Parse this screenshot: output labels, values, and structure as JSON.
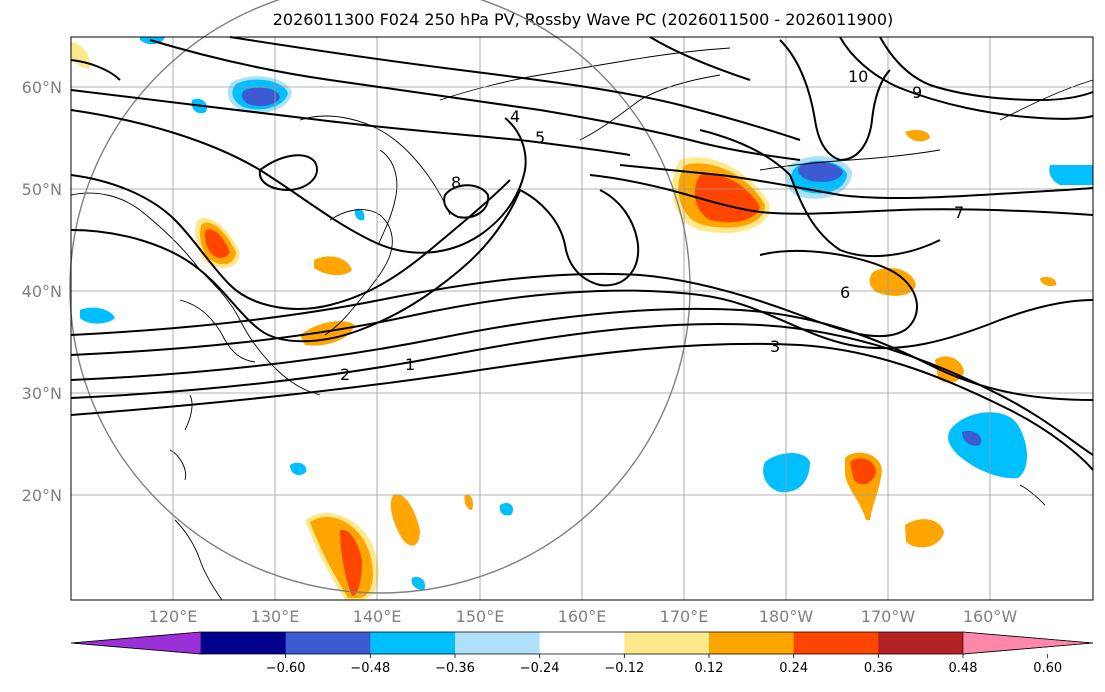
{
  "title": "2026011300 F024 250 hPa PV, Rossby Wave PC (2026011500 - 2026011900)",
  "lat_labels": [
    "60°N",
    "50°N",
    "40°N",
    "30°N",
    "20°N"
  ],
  "lon_labels": [
    "120°E",
    "130°E",
    "140°E",
    "150°E",
    "160°E",
    "170°E",
    "180°W",
    "170°W",
    "160°W"
  ],
  "colorbar": {
    "ticks": [
      "−0.60",
      "−0.48",
      "−0.36",
      "−0.24",
      "−0.12",
      "0.12",
      "0.24",
      "0.36",
      "0.48",
      "0.60"
    ],
    "colors": [
      "#9b30d9",
      "#00008b",
      "#3c5ad2",
      "#00bfff",
      "#aee0fa",
      "#ffffff",
      "#fde98c",
      "#ffa500",
      "#ff4500",
      "#b22222",
      "#ff88aa"
    ]
  },
  "contour_labels": [
    "1",
    "2",
    "3",
    "4",
    "5",
    "6",
    "7",
    "8",
    "9",
    "10"
  ]
}
